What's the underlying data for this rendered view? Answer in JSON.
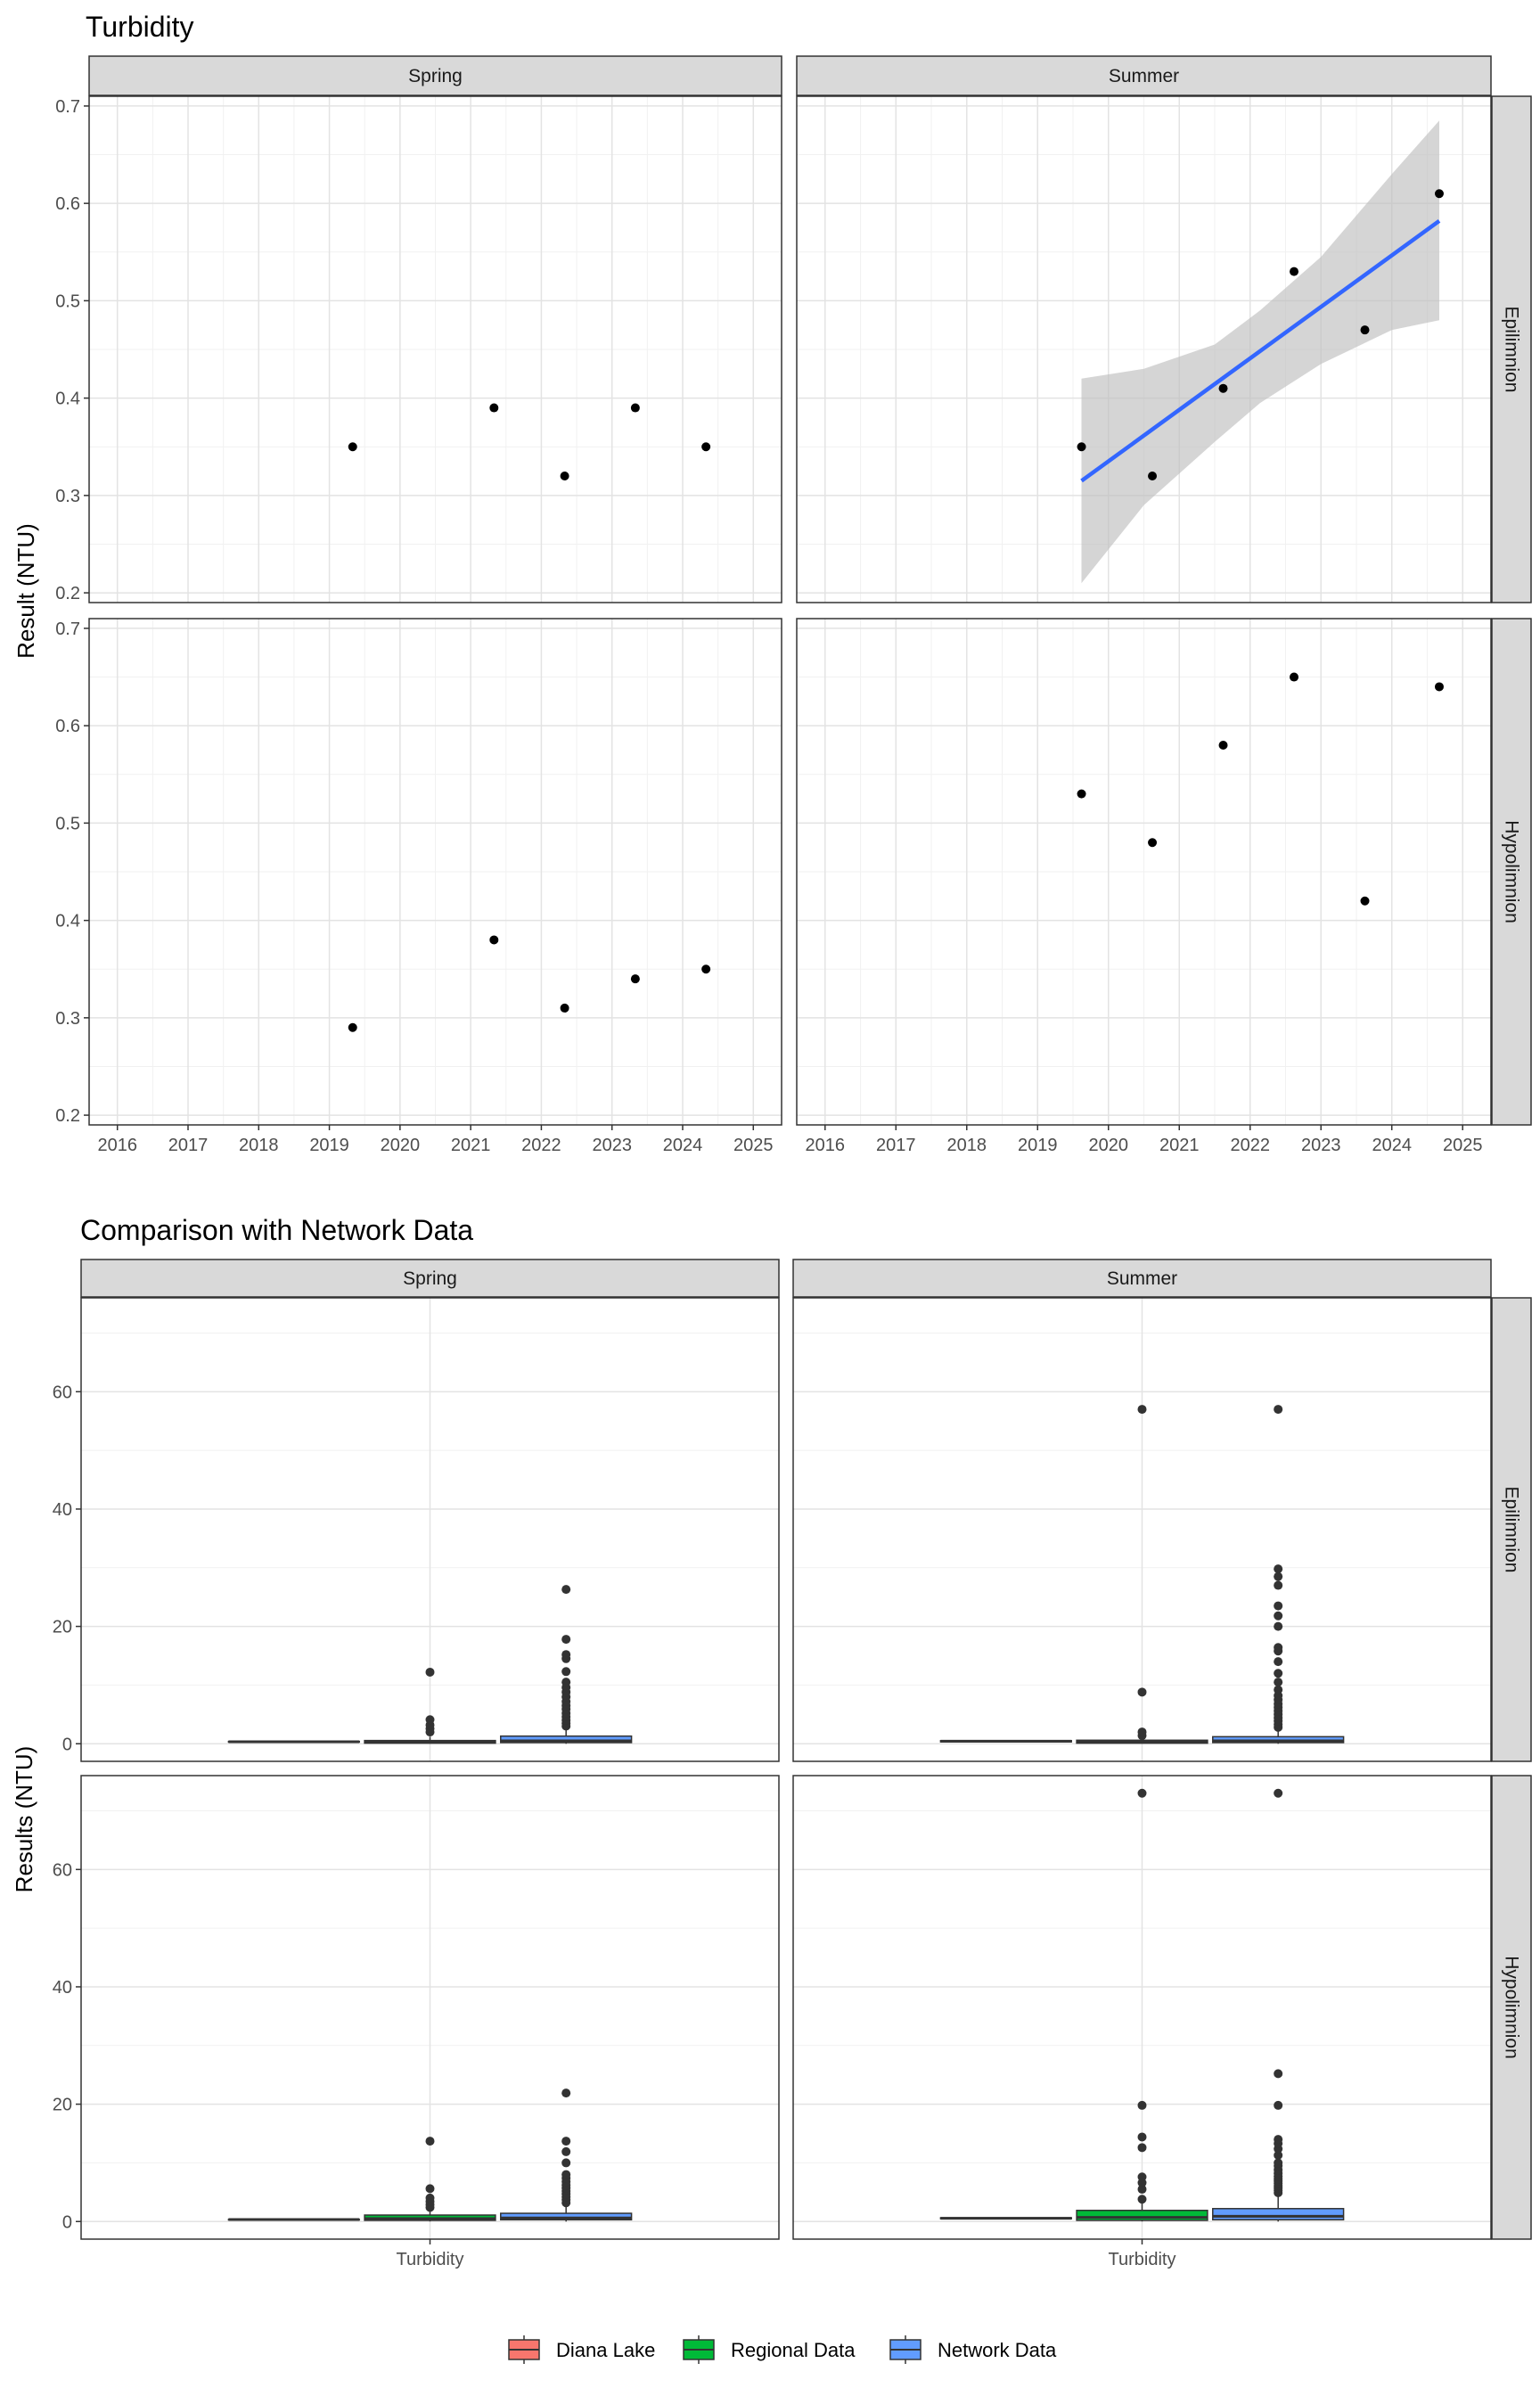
{
  "chart_data": [
    {
      "type": "scatter",
      "title": "Turbidity",
      "ylabel": "Result (NTU)",
      "xlabel": "",
      "ylim": [
        0.19,
        0.71
      ],
      "yticks": [
        "0.2",
        "0.3",
        "0.4",
        "0.5",
        "0.6",
        "0.7"
      ],
      "xlim": [
        2015.6,
        2025.4
      ],
      "xticks": [
        "2016",
        "2017",
        "2018",
        "2019",
        "2020",
        "2021",
        "2022",
        "2023",
        "2024",
        "2025"
      ],
      "columns": [
        "Spring",
        "Summer"
      ],
      "rows": [
        "Epilimnion",
        "Hypolimnion"
      ],
      "grid": true,
      "panels": [
        {
          "col": "Spring",
          "row": "Epilimnion",
          "points": [
            [
              2019.33,
              0.35
            ],
            [
              2021.33,
              0.39
            ],
            [
              2022.33,
              0.32
            ],
            [
              2023.33,
              0.39
            ],
            [
              2024.33,
              0.35
            ]
          ]
        },
        {
          "col": "Summer",
          "row": "Epilimnion",
          "points": [
            [
              2019.62,
              0.35
            ],
            [
              2020.62,
              0.32
            ],
            [
              2021.62,
              0.41
            ],
            [
              2022.62,
              0.53
            ],
            [
              2023.62,
              0.47
            ],
            [
              2024.67,
              0.61
            ]
          ],
          "trend": {
            "x": [
              2019.62,
              2024.67
            ],
            "y": [
              0.315,
              0.582
            ],
            "band_x": [
              2019.62,
              2020.5,
              2021.5,
              2022.14,
              2023.0,
              2024.0,
              2024.67
            ],
            "band_lower": [
              0.21,
              0.29,
              0.355,
              0.395,
              0.435,
              0.47,
              0.48
            ],
            "band_upper": [
              0.42,
              0.43,
              0.455,
              0.49,
              0.545,
              0.63,
              0.685
            ],
            "color": "#3366ff",
            "band_color": "#bebebe"
          }
        },
        {
          "col": "Spring",
          "row": "Hypolimnion",
          "points": [
            [
              2019.33,
              0.29
            ],
            [
              2021.33,
              0.38
            ],
            [
              2022.33,
              0.31
            ],
            [
              2023.33,
              0.34
            ],
            [
              2024.33,
              0.35
            ]
          ]
        },
        {
          "col": "Summer",
          "row": "Hypolimnion",
          "points": [
            [
              2019.62,
              0.53
            ],
            [
              2020.62,
              0.48
            ],
            [
              2021.62,
              0.58
            ],
            [
              2022.62,
              0.65
            ],
            [
              2023.62,
              0.42
            ],
            [
              2024.67,
              0.64
            ]
          ]
        }
      ]
    },
    {
      "type": "box",
      "title": "Comparison with Network Data",
      "ylabel": "Results (NTU)",
      "xlabel": "",
      "category": "Turbidity",
      "ylim": [
        -3,
        76
      ],
      "yticks": [
        "0",
        "20",
        "40",
        "60"
      ],
      "columns": [
        "Spring",
        "Summer"
      ],
      "rows": [
        "Epilimnion",
        "Hypolimnion"
      ],
      "grid": true,
      "legend": {
        "position": "bottom",
        "items": [
          {
            "label": "Diana Lake",
            "color": "#f8766d"
          },
          {
            "label": "Regional Data",
            "color": "#00ba38"
          },
          {
            "label": "Network Data",
            "color": "#619cff"
          }
        ]
      },
      "panels": [
        {
          "col": "Spring",
          "row": "Epilimnion",
          "boxes": [
            {
              "group": "Diana Lake",
              "q1": 0.29,
              "median": 0.35,
              "q3": 0.39,
              "whisker_low": 0.29,
              "whisker_high": 0.39,
              "outliers": []
            },
            {
              "group": "Regional Data",
              "q1": 0.1,
              "median": 0.3,
              "q3": 0.55,
              "whisker_low": 0.0,
              "whisker_high": 1.2,
              "outliers": [
                2.0,
                2.6,
                3.2,
                4.1,
                12.2
              ]
            },
            {
              "group": "Network Data",
              "q1": 0.2,
              "median": 0.5,
              "q3": 1.3,
              "whisker_low": 0.0,
              "whisker_high": 2.6,
              "outliers": [
                3.0,
                3.5,
                4.0,
                4.6,
                5.2,
                5.9,
                6.5,
                7.2,
                8.0,
                8.8,
                9.6,
                10.5,
                12.3,
                14.5,
                15.2,
                17.8,
                26.3
              ]
            }
          ]
        },
        {
          "col": "Summer",
          "row": "Epilimnion",
          "boxes": [
            {
              "group": "Diana Lake",
              "q1": 0.32,
              "median": 0.44,
              "q3": 0.53,
              "whisker_low": 0.32,
              "whisker_high": 0.61,
              "outliers": []
            },
            {
              "group": "Regional Data",
              "q1": 0.1,
              "median": 0.3,
              "q3": 0.6,
              "whisker_low": 0.0,
              "whisker_high": 1.0,
              "outliers": [
                1.4,
                2.0,
                8.8,
                57.0
              ]
            },
            {
              "group": "Network Data",
              "q1": 0.2,
              "median": 0.5,
              "q3": 1.2,
              "whisker_low": 0.0,
              "whisker_high": 2.4,
              "outliers": [
                2.8,
                3.3,
                3.9,
                4.4,
                5.0,
                5.6,
                6.2,
                6.8,
                7.5,
                8.2,
                9.2,
                10.5,
                12.0,
                14.0,
                15.8,
                16.4,
                20.0,
                21.8,
                23.5,
                27.0,
                28.5,
                29.8,
                57.0
              ]
            }
          ]
        },
        {
          "col": "Spring",
          "row": "Hypolimnion",
          "boxes": [
            {
              "group": "Diana Lake",
              "q1": 0.31,
              "median": 0.34,
              "q3": 0.35,
              "whisker_low": 0.29,
              "whisker_high": 0.38,
              "outliers": []
            },
            {
              "group": "Regional Data",
              "q1": 0.2,
              "median": 0.5,
              "q3": 1.1,
              "whisker_low": 0.0,
              "whisker_high": 2.0,
              "outliers": [
                2.4,
                2.9,
                3.4,
                4.0,
                5.6,
                13.7
              ]
            },
            {
              "group": "Network Data",
              "q1": 0.3,
              "median": 0.6,
              "q3": 1.4,
              "whisker_low": 0.0,
              "whisker_high": 2.8,
              "outliers": [
                3.2,
                3.7,
                4.2,
                4.7,
                5.2,
                5.7,
                6.2,
                6.8,
                7.4,
                8.0,
                10.0,
                11.9,
                13.7,
                21.9
              ]
            }
          ]
        },
        {
          "col": "Summer",
          "row": "Hypolimnion",
          "boxes": [
            {
              "group": "Diana Lake",
              "q1": 0.48,
              "median": 0.555,
              "q3": 0.64,
              "whisker_low": 0.42,
              "whisker_high": 0.65,
              "outliers": []
            },
            {
              "group": "Regional Data",
              "q1": 0.2,
              "median": 0.7,
              "q3": 1.9,
              "whisker_low": 0.0,
              "whisker_high": 3.2,
              "outliers": [
                3.8,
                5.5,
                6.6,
                7.6,
                12.6,
                14.4,
                19.8,
                73.0
              ]
            },
            {
              "group": "Network Data",
              "q1": 0.3,
              "median": 0.9,
              "q3": 2.2,
              "whisker_low": 0.0,
              "whisker_high": 4.5,
              "outliers": [
                4.9,
                5.3,
                5.7,
                6.1,
                6.5,
                6.9,
                7.3,
                7.7,
                8.2,
                8.8,
                9.5,
                10.0,
                11.3,
                12.4,
                13.3,
                14.0,
                19.8,
                25.2,
                73.0
              ]
            }
          ]
        }
      ]
    }
  ]
}
